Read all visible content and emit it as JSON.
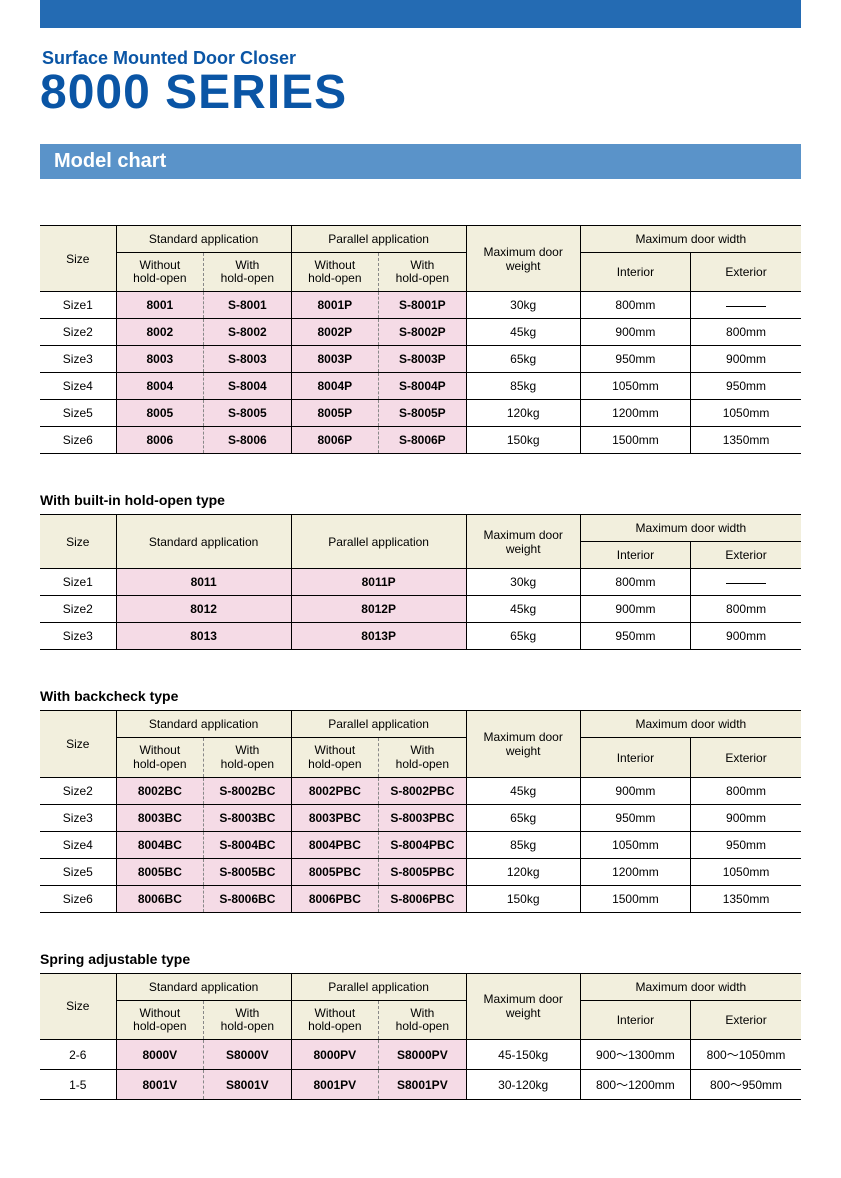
{
  "colors": {
    "top_bar": "#246bb3",
    "section_bar": "#5a93c9",
    "title": "#0a55a5",
    "header_bg": "#f2efdd",
    "model_bg": "#f5dbe6",
    "border": "#000000"
  },
  "subtitle": "Surface Mounted Door Closer",
  "title": "8000 SERIES",
  "section_label": "Model chart",
  "headers": {
    "size": "Size",
    "std_app": "Standard application",
    "par_app": "Parallel application",
    "max_weight": "Maximum door weight",
    "max_width": "Maximum door width",
    "without_ho_1": "Without",
    "without_ho_2": "hold-open",
    "with_ho_1": "With",
    "with_ho_2": "hold-open",
    "interior": "Interior",
    "exterior": "Exterior"
  },
  "table1": {
    "rows": [
      {
        "size": "Size1",
        "std_wo": "8001",
        "std_w": "S-8001",
        "par_wo": "8001P",
        "par_w": "S-8001P",
        "weight": "30kg",
        "int": "800mm",
        "ext": "—"
      },
      {
        "size": "Size2",
        "std_wo": "8002",
        "std_w": "S-8002",
        "par_wo": "8002P",
        "par_w": "S-8002P",
        "weight": "45kg",
        "int": "900mm",
        "ext": "800mm"
      },
      {
        "size": "Size3",
        "std_wo": "8003",
        "std_w": "S-8003",
        "par_wo": "8003P",
        "par_w": "S-8003P",
        "weight": "65kg",
        "int": "950mm",
        "ext": "900mm"
      },
      {
        "size": "Size4",
        "std_wo": "8004",
        "std_w": "S-8004",
        "par_wo": "8004P",
        "par_w": "S-8004P",
        "weight": "85kg",
        "int": "1050mm",
        "ext": "950mm"
      },
      {
        "size": "Size5",
        "std_wo": "8005",
        "std_w": "S-8005",
        "par_wo": "8005P",
        "par_w": "S-8005P",
        "weight": "120kg",
        "int": "1200mm",
        "ext": "1050mm"
      },
      {
        "size": "Size6",
        "std_wo": "8006",
        "std_w": "S-8006",
        "par_wo": "8006P",
        "par_w": "S-8006P",
        "weight": "150kg",
        "int": "1500mm",
        "ext": "1350mm"
      }
    ]
  },
  "table2": {
    "title": "With built-in hold-open type",
    "rows": [
      {
        "size": "Size1",
        "std": "8011",
        "par": "8011P",
        "weight": "30kg",
        "int": "800mm",
        "ext": "—"
      },
      {
        "size": "Size2",
        "std": "8012",
        "par": "8012P",
        "weight": "45kg",
        "int": "900mm",
        "ext": "800mm"
      },
      {
        "size": "Size3",
        "std": "8013",
        "par": "8013P",
        "weight": "65kg",
        "int": "950mm",
        "ext": "900mm"
      }
    ]
  },
  "table3": {
    "title": "With backcheck type",
    "rows": [
      {
        "size": "Size2",
        "std_wo": "8002BC",
        "std_w": "S-8002BC",
        "par_wo": "8002PBC",
        "par_w": "S-8002PBC",
        "weight": "45kg",
        "int": "900mm",
        "ext": "800mm"
      },
      {
        "size": "Size3",
        "std_wo": "8003BC",
        "std_w": "S-8003BC",
        "par_wo": "8003PBC",
        "par_w": "S-8003PBC",
        "weight": "65kg",
        "int": "950mm",
        "ext": "900mm"
      },
      {
        "size": "Size4",
        "std_wo": "8004BC",
        "std_w": "S-8004BC",
        "par_wo": "8004PBC",
        "par_w": "S-8004PBC",
        "weight": "85kg",
        "int": "1050mm",
        "ext": "950mm"
      },
      {
        "size": "Size5",
        "std_wo": "8005BC",
        "std_w": "S-8005BC",
        "par_wo": "8005PBC",
        "par_w": "S-8005PBC",
        "weight": "120kg",
        "int": "1200mm",
        "ext": "1050mm"
      },
      {
        "size": "Size6",
        "std_wo": "8006BC",
        "std_w": "S-8006BC",
        "par_wo": "8006PBC",
        "par_w": "S-8006PBC",
        "weight": "150kg",
        "int": "1500mm",
        "ext": "1350mm"
      }
    ]
  },
  "table4": {
    "title": "Spring adjustable type",
    "rows": [
      {
        "size": "2-6",
        "std_wo": "8000V",
        "std_w": "S8000V",
        "par_wo": "8000PV",
        "par_w": "S8000PV",
        "weight": "45-150kg",
        "int": "900～1300mm",
        "ext": "800～1050mm"
      },
      {
        "size": "1-5",
        "std_wo": "8001V",
        "std_w": "S8001V",
        "par_wo": "8001PV",
        "par_w": "S8001PV",
        "weight": "30-120kg",
        "int": "800～1200mm",
        "ext": "800～950mm"
      }
    ]
  }
}
